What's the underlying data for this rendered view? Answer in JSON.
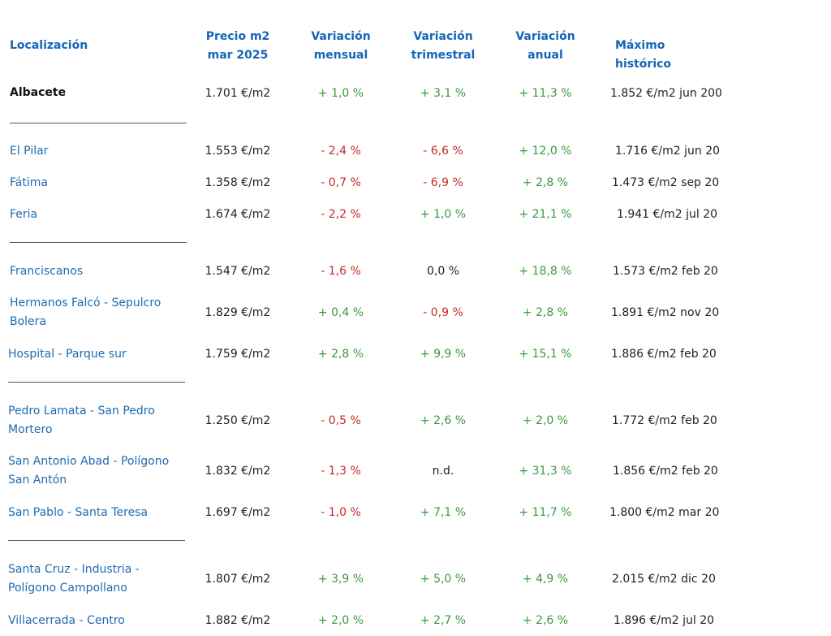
{
  "headers": {
    "location": "Localización",
    "price": [
      "Precio m2",
      "mar 2025"
    ],
    "monthly": [
      "Variación",
      "mensual"
    ],
    "quarterly": [
      "Variación",
      "trimestral"
    ],
    "annual": [
      "Variación",
      "anual"
    ],
    "max": "Máximo histórico"
  },
  "city": {
    "name": "Albacete",
    "price": "1.701 €/m2",
    "monthly": "+ 1,0 %",
    "quarterly": "+ 3,1 %",
    "annual": "+ 11,3 %",
    "max": "1.852 €/m2 jun 200"
  },
  "rows": [
    {
      "name": [
        "El Pilar"
      ],
      "price": "1.553 €/m2",
      "monthly": "- 2,4 %",
      "quarterly": "- 6,6 %",
      "annual": "+ 12,0 %",
      "max": "1.716 €/m2 jun 20"
    },
    {
      "name": [
        "Fátima"
      ],
      "price": "1.358 €/m2",
      "monthly": "- 0,7 %",
      "quarterly": "- 6,9 %",
      "annual": "+ 2,8 %",
      "max": "1.473 €/m2 sep 20"
    },
    {
      "name": [
        "Feria"
      ],
      "price": "1.674 €/m2",
      "monthly": "- 2,2 %",
      "quarterly": "+ 1,0 %",
      "annual": "+ 21,1 %",
      "max": "1.941 €/m2 jul 20"
    },
    {
      "name": [
        "Franciscanos"
      ],
      "price": "1.547 €/m2",
      "monthly": "- 1,6 %",
      "quarterly": "0,0 %",
      "annual": "+ 18,8 %",
      "max": "1.573 €/m2 feb 20"
    },
    {
      "name": [
        "Hermanos Falcó - Sepulcro",
        "Bolera"
      ],
      "price": "1.829 €/m2",
      "monthly": "+ 0,4 %",
      "quarterly": "- 0,9 %",
      "annual": "+ 2,8 %",
      "max": "1.891 €/m2 nov 20"
    },
    {
      "name": [
        "Hospital - Parque sur"
      ],
      "price": "1.759 €/m2",
      "monthly": "+ 2,8 %",
      "quarterly": "+ 9,9 %",
      "annual": "+ 15,1 %",
      "max": "1.886 €/m2 feb 20"
    },
    {
      "name": [
        "Pedro Lamata - San Pedro",
        "Mortero"
      ],
      "price": "1.250 €/m2",
      "monthly": "- 0,5 %",
      "quarterly": "+ 2,6 %",
      "annual": "+ 2,0 %",
      "max": "1.772 €/m2 feb 20"
    },
    {
      "name": [
        "San Antonio Abad - Polígono",
        "San Antón"
      ],
      "price": "1.832 €/m2",
      "monthly": "- 1,3 %",
      "quarterly": "n.d.",
      "annual": "+ 31,3 %",
      "max": "1.856 €/m2 feb 20"
    },
    {
      "name": [
        "San Pablo - Santa Teresa"
      ],
      "price": "1.697 €/m2",
      "monthly": "- 1,0 %",
      "quarterly": "+ 7,1 %",
      "annual": "+ 11,7 %",
      "max": "1.800 €/m2 mar 20"
    },
    {
      "name": [
        "Santa Cruz - Industria -",
        "Polígono Campollano"
      ],
      "price": "1.807 €/m2",
      "monthly": "+ 3,9 %",
      "quarterly": "+ 5,0 %",
      "annual": "+ 4,9 %",
      "max": "2.015 €/m2 dic 20"
    },
    {
      "name": [
        "Villacerrada - Centro"
      ],
      "price": "1.882 €/m2",
      "monthly": "+ 2,0 %",
      "quarterly": "+ 2,7 %",
      "annual": "+ 2,6 %",
      "max": "1.896 €/m2 jul 20"
    }
  ],
  "colors": {
    "header": "#1565b8",
    "link": "#1e6bb0",
    "positive": "#3a9a3a",
    "negative": "#c62828"
  }
}
